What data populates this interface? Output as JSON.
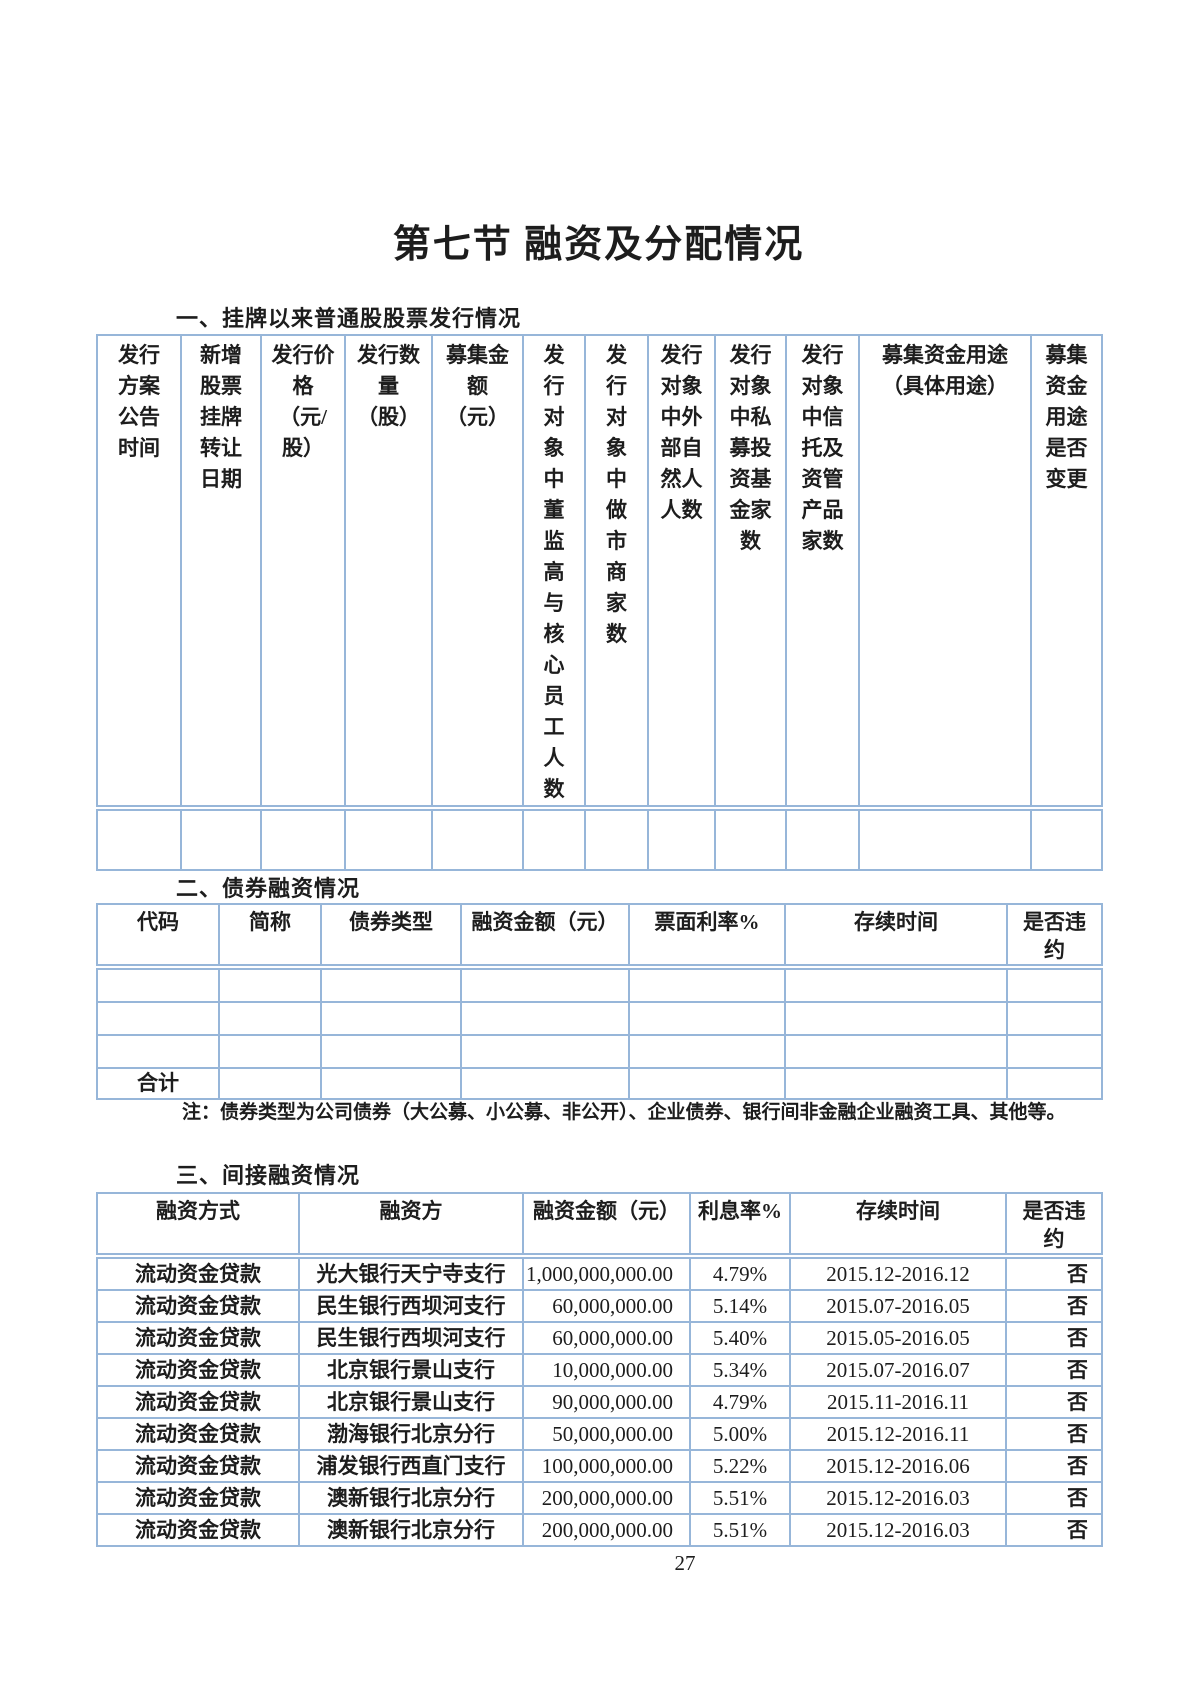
{
  "page": {
    "title": "第七节 融资及分配情况",
    "page_number": "27",
    "colors": {
      "table_border": "#97b6d9",
      "text": "#1d1d1d"
    }
  },
  "section1": {
    "heading": "一、挂牌以来普通股股票发行情况",
    "table": {
      "headers": [
        "发行\n方案\n公告\n时间",
        "新增\n股票\n挂牌\n转让\n日期",
        "发行价\n格\n（元/\n股）",
        "发行数\n量\n（股）",
        "募集金\n额\n（元）",
        "发\n行\n对\n象\n中\n董\n监\n高\n与\n核\n心\n员\n工\n人\n数",
        "发\n行\n对\n象\n中\n做\n市\n商\n家\n数",
        "发行\n对象\n中外\n部自\n然人\n人数",
        "发行\n对象\n中私\n募投\n资基\n金家\n数",
        "发行\n对象\n中信\n托及\n资管\n产品\n家数",
        "募集资金用途\n（具体用途）",
        "募集\n资金\n用途\n是否\n变更"
      ],
      "empty_row_count": 1
    }
  },
  "section2": {
    "heading": "二、债券融资情况",
    "table": {
      "headers": [
        "代码",
        "简称",
        "债券类型",
        "融资金额（元）",
        "票面利率%",
        "存续时间",
        "是否违\n约"
      ],
      "empty_row_count": 3,
      "total_label": "合计"
    },
    "note": "注：债券类型为公司债券（大公募、小公募、非公开）、企业债券、银行间非金融企业融资工具、其他等。"
  },
  "section3": {
    "heading": "三、间接融资情况",
    "table": {
      "headers": [
        "融资方式",
        "融资方",
        "融资金额（元）",
        "利息率%",
        "存续时间",
        "是否违\n约"
      ],
      "rows": [
        [
          "流动资金贷款",
          "光大银行天宁寺支行",
          "1,000,000,000.00",
          "4.79%",
          "2015.12-2016.12",
          "否"
        ],
        [
          "流动资金贷款",
          "民生银行西坝河支行",
          "60,000,000.00",
          "5.14%",
          "2015.07-2016.05",
          "否"
        ],
        [
          "流动资金贷款",
          "民生银行西坝河支行",
          "60,000,000.00",
          "5.40%",
          "2015.05-2016.05",
          "否"
        ],
        [
          "流动资金贷款",
          "北京银行景山支行",
          "10,000,000.00",
          "5.34%",
          "2015.07-2016.07",
          "否"
        ],
        [
          "流动资金贷款",
          "北京银行景山支行",
          "90,000,000.00",
          "4.79%",
          "2015.11-2016.11",
          "否"
        ],
        [
          "流动资金贷款",
          "渤海银行北京分行",
          "50,000,000.00",
          "5.00%",
          "2015.12-2016.11",
          "否"
        ],
        [
          "流动资金贷款",
          "浦发银行西直门支行",
          "100,000,000.00",
          "5.22%",
          "2015.12-2016.06",
          "否"
        ],
        [
          "流动资金贷款",
          "澳新银行北京分行",
          "200,000,000.00",
          "5.51%",
          "2015.12-2016.03",
          "否"
        ],
        [
          "流动资金贷款",
          "澳新银行北京分行",
          "200,000,000.00",
          "5.51%",
          "2015.12-2016.03",
          "否"
        ]
      ]
    }
  }
}
